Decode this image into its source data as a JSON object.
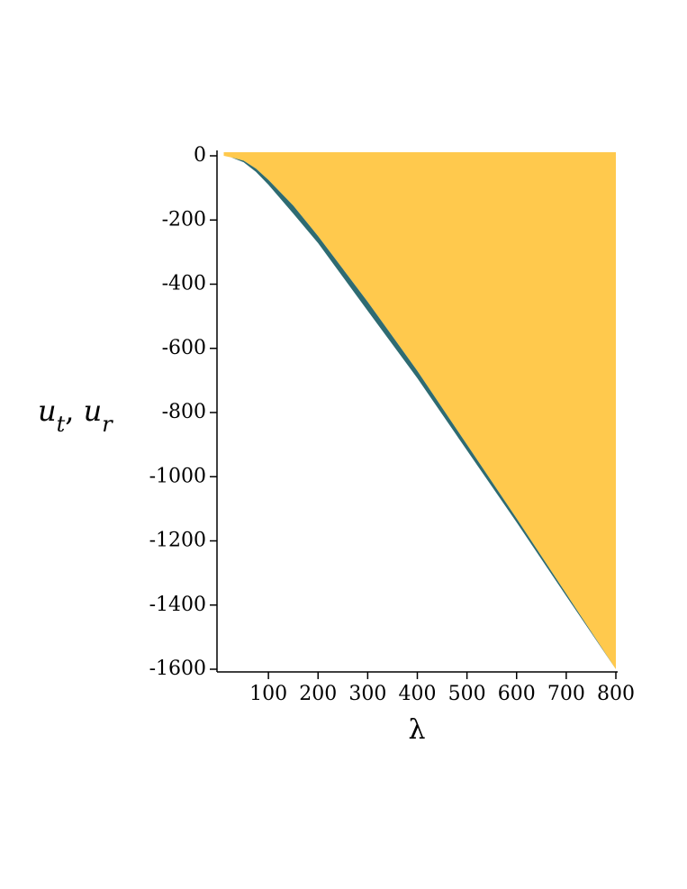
{
  "chart_data": {
    "type": "area",
    "xlabel": "λ",
    "ylabel": [
      "u",
      "t",
      ", ",
      "u",
      "r"
    ],
    "x": [
      10,
      25,
      50,
      75,
      100,
      150,
      200,
      300,
      400,
      500,
      600,
      700,
      800
    ],
    "series": [
      {
        "color": "#ffc94d",
        "values": [
          0,
          -5,
          -15,
          -40,
          -75,
          -155,
          -250,
          -455,
          -670,
          -900,
          -1130,
          -1365,
          -1600
        ]
      },
      {
        "color": "#2e6b72",
        "values": [
          0,
          -5,
          -20,
          -50,
          -90,
          -180,
          -272,
          -483,
          -693,
          -918,
          -1142,
          -1372,
          -1600
        ]
      }
    ],
    "xlim": [
      0,
      800
    ],
    "ylim": [
      -1600,
      0
    ],
    "xticks": [
      100,
      200,
      300,
      400,
      500,
      600,
      700,
      800
    ],
    "yticks": [
      0,
      -200,
      -400,
      -600,
      -800,
      -1000,
      -1200,
      -1400,
      -1600
    ]
  }
}
